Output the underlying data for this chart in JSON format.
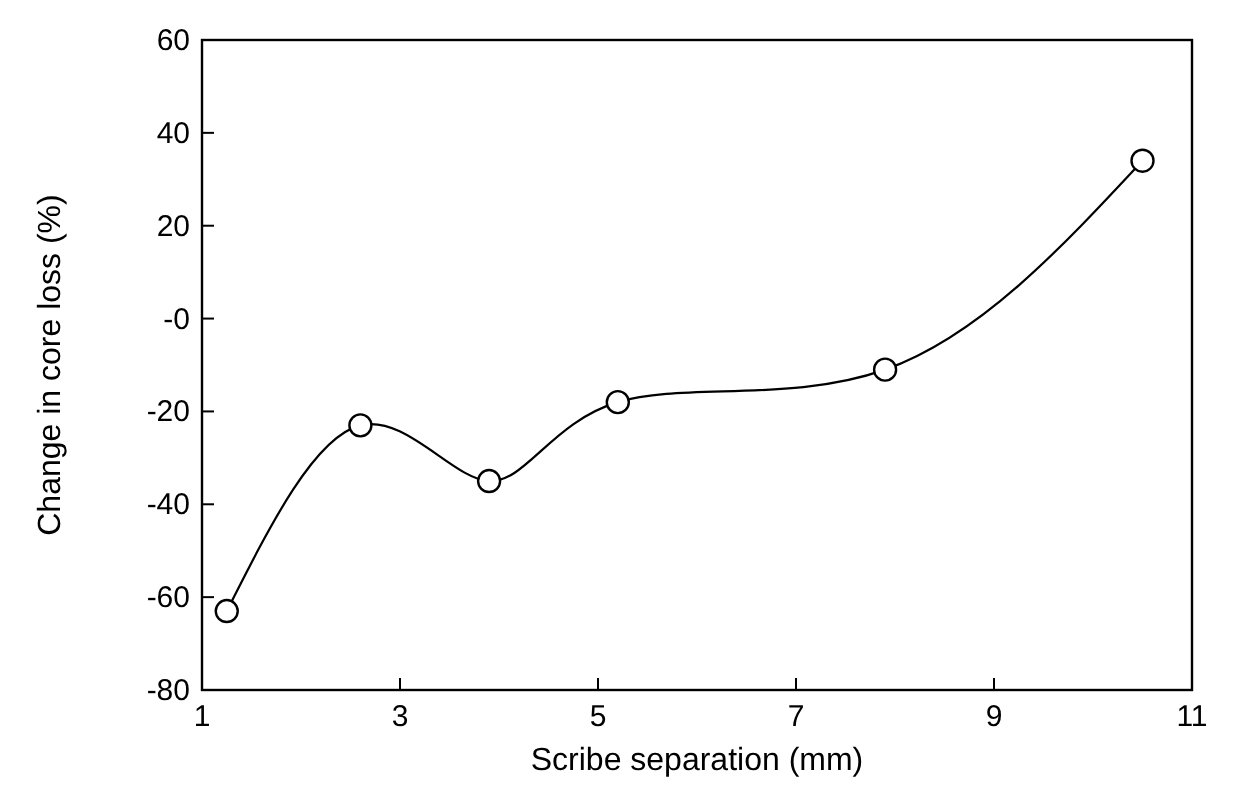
{
  "chart_data": {
    "type": "line",
    "xlabel": "Scribe separation (mm)",
    "ylabel": "Change in core loss (%)",
    "x": [
      1.25,
      2.6,
      3.9,
      5.2,
      7.9,
      10.5
    ],
    "series": [
      {
        "color": "#000000",
        "values": [
          -63,
          -23,
          -35,
          -18,
          -11,
          34
        ]
      }
    ],
    "xlim": [
      1,
      11
    ],
    "xticks": [
      1,
      3,
      5,
      7,
      9,
      11
    ],
    "ylim": [
      -80,
      60
    ],
    "yticks": [
      -80,
      -60,
      -40,
      -20,
      {
        "value": 0,
        "label": "-0"
      },
      20,
      40,
      60
    ],
    "marker": "circle",
    "line_style": "solid"
  }
}
